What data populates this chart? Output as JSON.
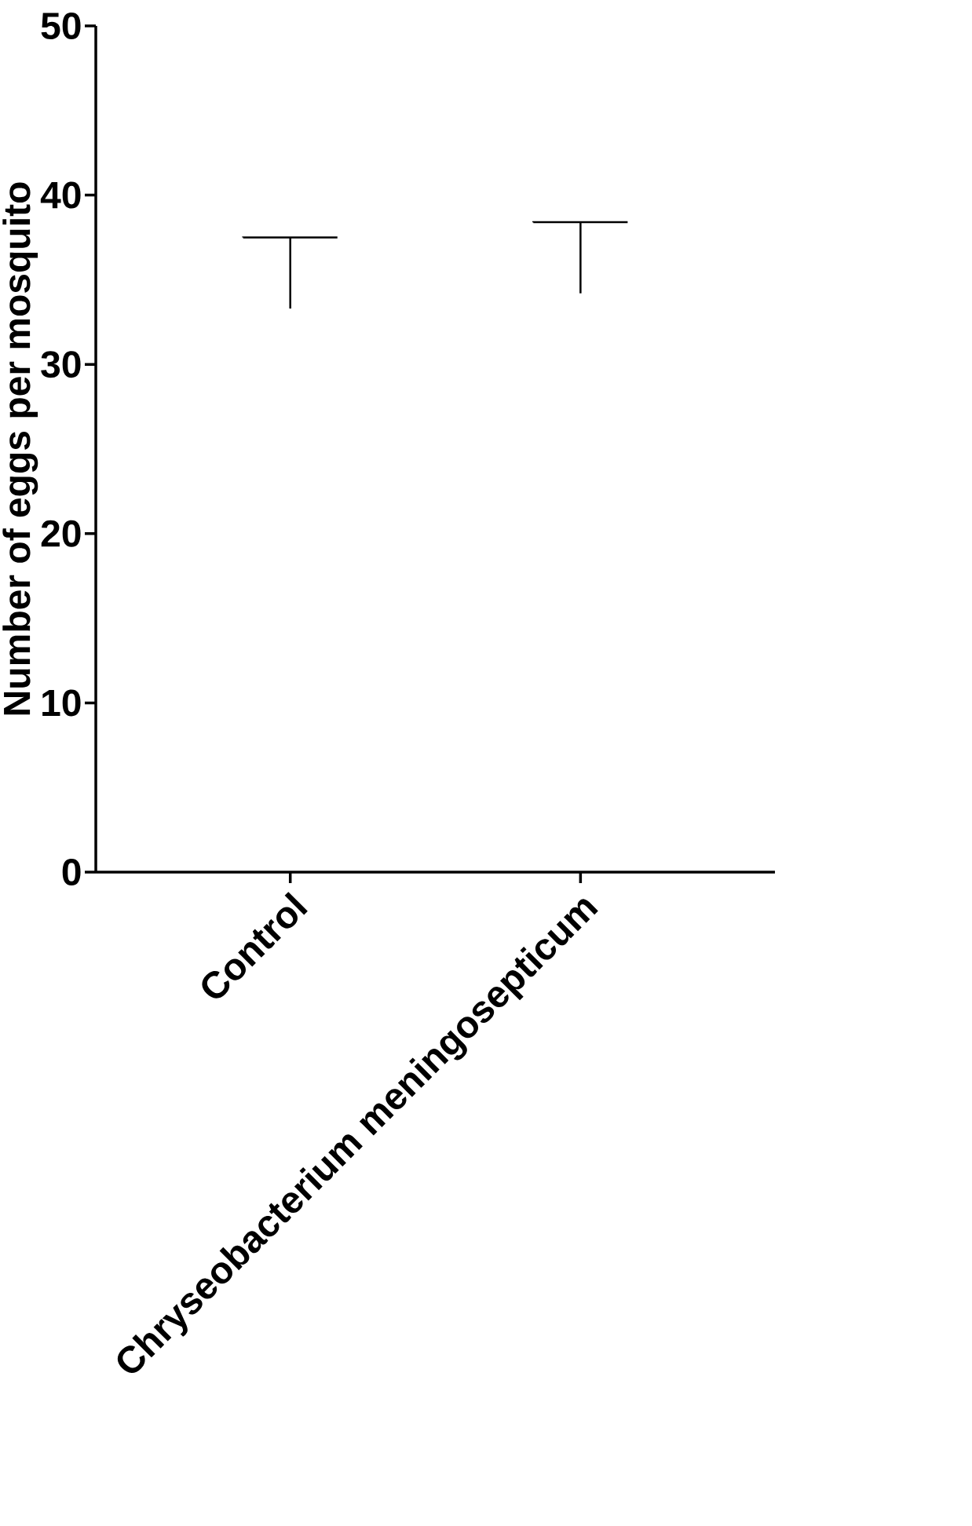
{
  "chart_data": {
    "type": "bar",
    "ylabel": "Number of eggs per mosquito",
    "categories": [
      "Control",
      "Chryseobacterium meningosepticum"
    ],
    "values": [
      37.5,
      38.4
    ],
    "errors": [
      [
        33.3,
        37.5
      ],
      [
        34.2,
        38.4
      ]
    ],
    "color": "#ffffff",
    "ylim": [
      0,
      50
    ],
    "yticks": [
      0,
      10,
      20,
      30,
      40,
      50
    ]
  }
}
